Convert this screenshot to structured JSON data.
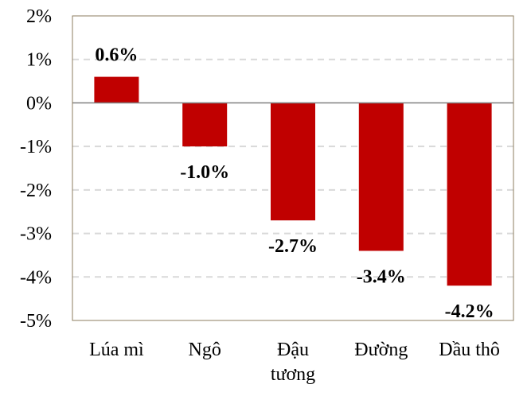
{
  "chart_data": {
    "type": "bar",
    "categories": [
      [
        "Lúa mì"
      ],
      [
        "Ngô"
      ],
      [
        "Đậu",
        "tương"
      ],
      [
        "Đường"
      ],
      [
        "Dầu thô"
      ]
    ],
    "values": [
      0.6,
      -1.0,
      -2.7,
      -3.4,
      -4.2
    ],
    "data_labels": [
      "0.6%",
      "-1.0%",
      "-2.7%",
      "-3.4%",
      "-4.2%"
    ],
    "ylim": [
      -5,
      2
    ],
    "yticks": [
      2,
      1,
      0,
      -1,
      -2,
      -3,
      -4,
      -5
    ],
    "ytick_labels": [
      "2%",
      "1%",
      "0%",
      "-1%",
      "-2%",
      "-3%",
      "-4%",
      "-5%"
    ],
    "title": "",
    "xlabel": "",
    "ylabel": "",
    "grid": true,
    "colors": {
      "bar": "#c00000",
      "grid": "#d9d9d9",
      "axis": "#8c7d5f",
      "zero_line": "#7f7f7f"
    }
  }
}
